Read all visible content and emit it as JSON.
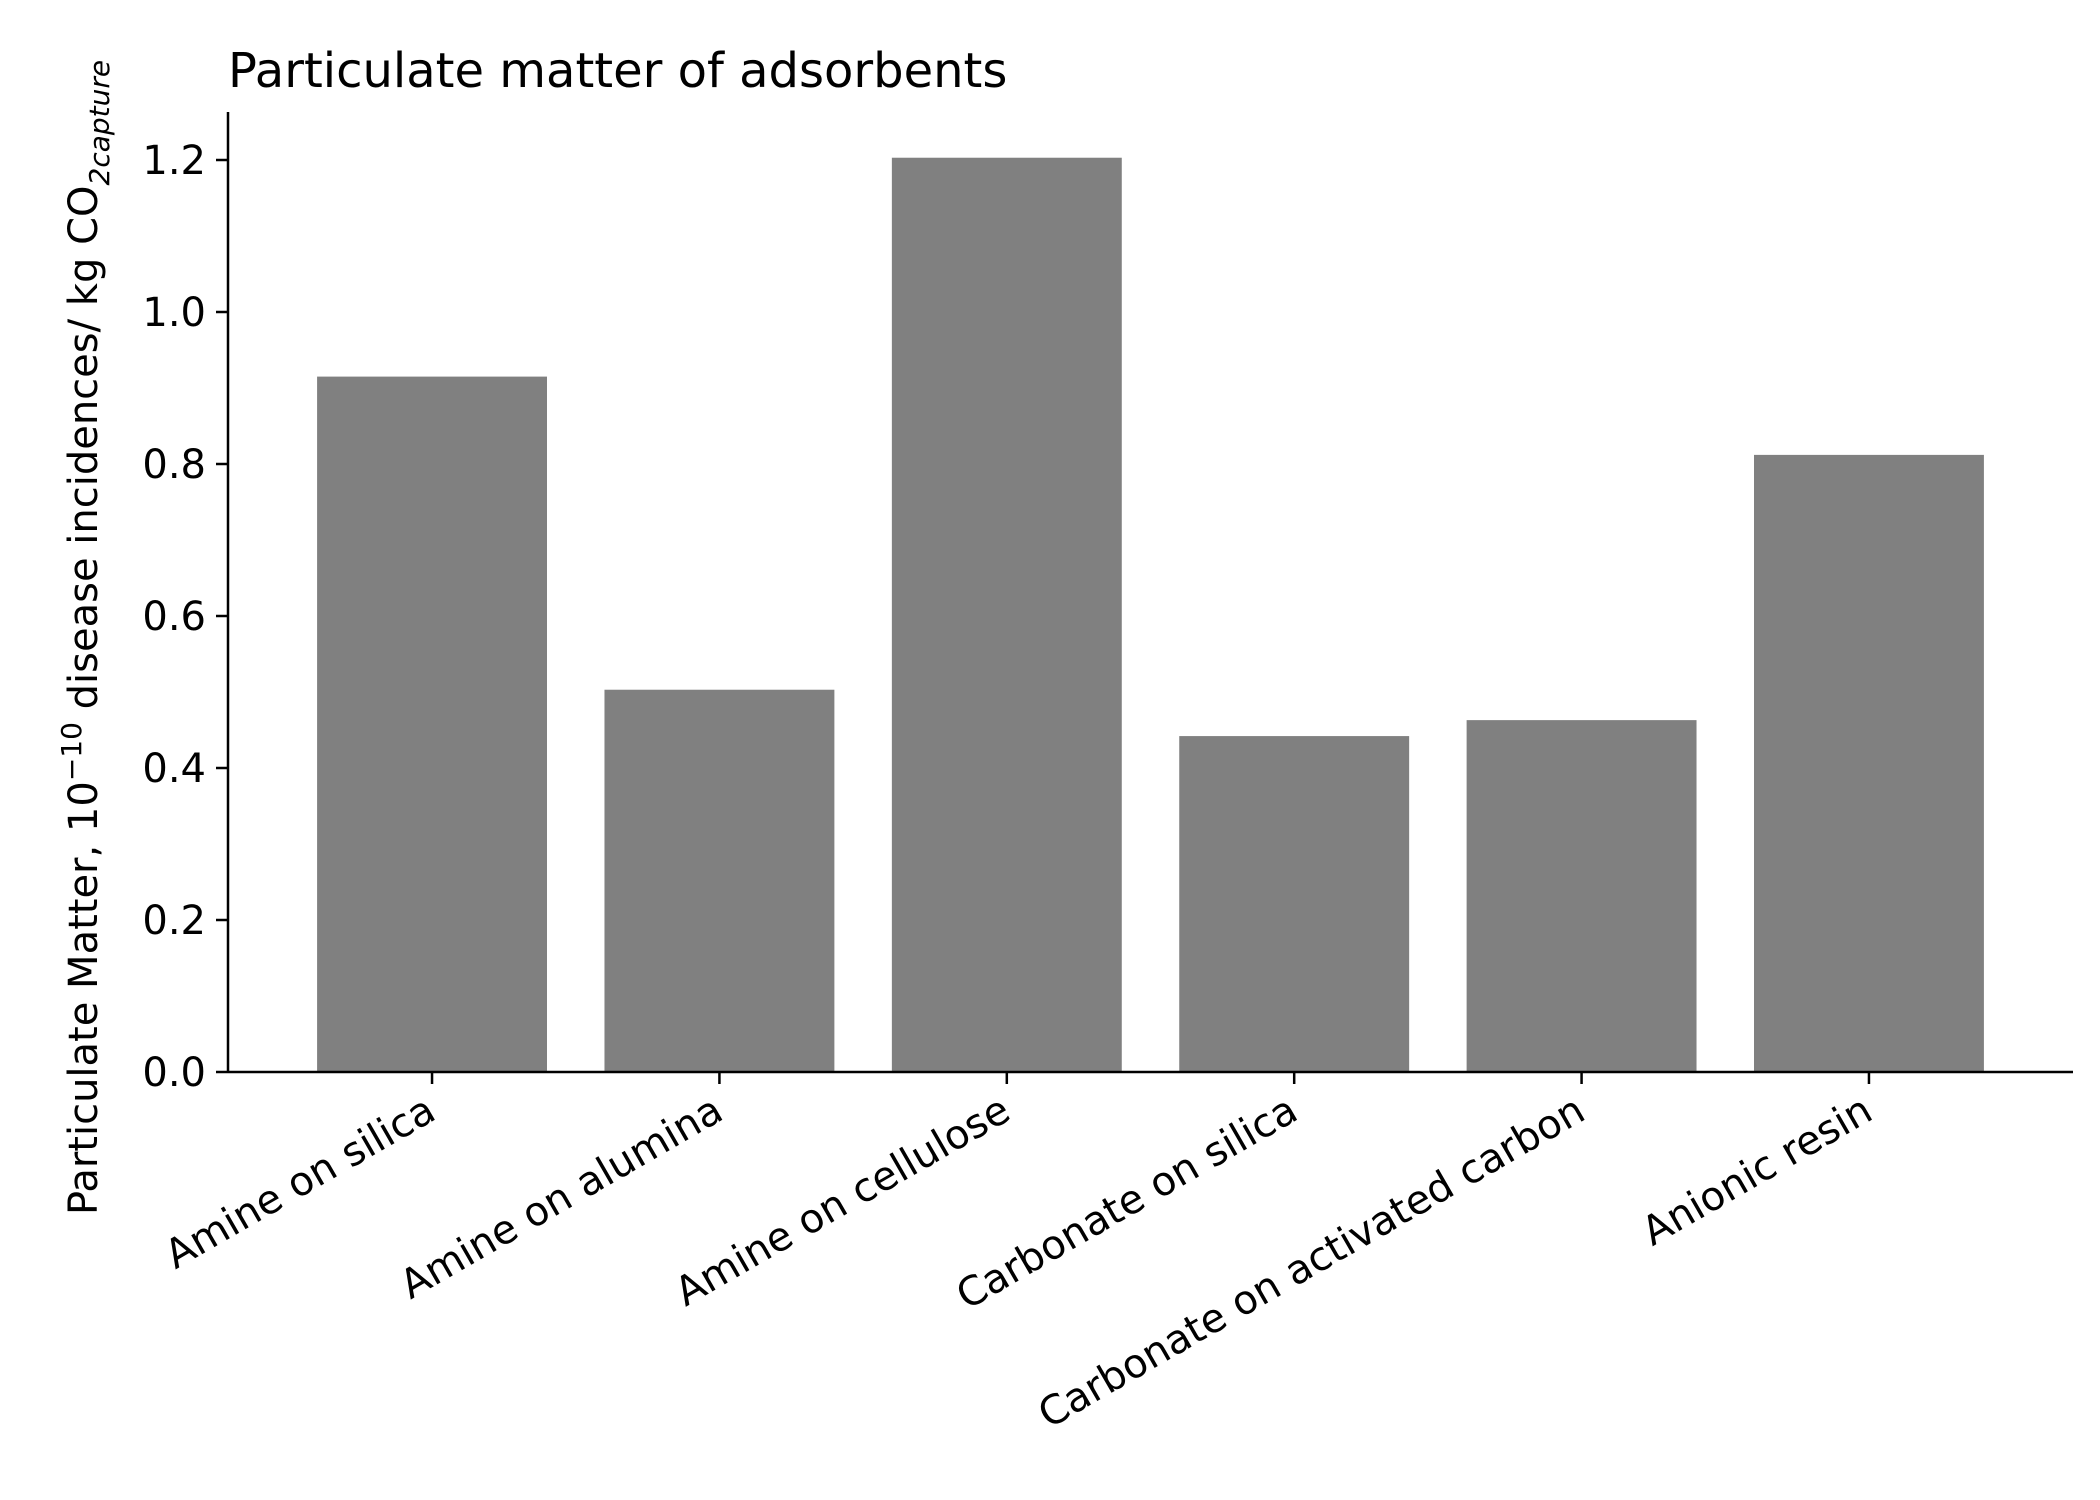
{
  "chart_data": {
    "type": "bar",
    "title": "Particulate matter of adsorbents",
    "ylabel": {
      "prefix": "Particulate Matter, 10",
      "exponent": "−10",
      "middle": " disease incidences/ kg CO",
      "subscript": "2capture"
    },
    "xlabel": "",
    "categories": [
      "Amine on silica",
      "Amine on alumina",
      "Amine on cellulose",
      "Carbonate on silica",
      "Carbonate on activated carbon",
      "Anionic resin"
    ],
    "values": [
      0.915,
      0.503,
      1.203,
      0.442,
      0.463,
      0.812
    ],
    "ylim": [
      0,
      1.26
    ],
    "yticks": [
      0.0,
      0.2,
      0.4,
      0.6,
      0.8,
      1.0,
      1.2
    ],
    "ytick_labels": [
      "0.0",
      "0.2",
      "0.4",
      "0.6",
      "0.8",
      "1.0",
      "1.2"
    ],
    "grid": false,
    "bar_color": "#808080"
  }
}
